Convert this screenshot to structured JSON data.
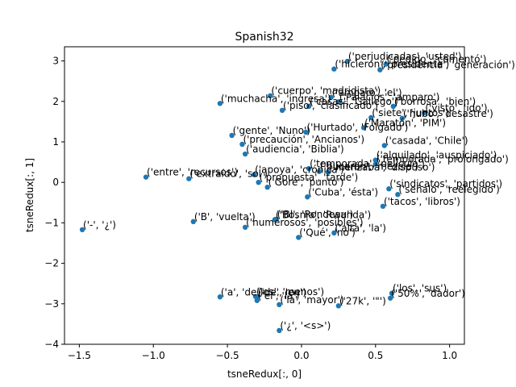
{
  "chart_data": {
    "type": "scatter",
    "title": "Spanish32",
    "xlabel": "tsneRedux[:, 0]",
    "ylabel": "tsneRedux[:, 1]",
    "xlim": [
      -1.6,
      1.1
    ],
    "ylim": [
      -4,
      3.35
    ],
    "xticks": [
      -1.5,
      -1.0,
      -0.5,
      0.0,
      0.5,
      1.0
    ],
    "xtick_labels": [
      "−1.5",
      "−1.0",
      "−0.5",
      "0.0",
      "0.5",
      "1.0"
    ],
    "yticks": [
      -4,
      -3,
      -2,
      -1,
      0,
      1,
      2,
      3
    ],
    "ytick_labels": [
      "−4",
      "−3",
      "−2",
      "−1",
      "0",
      "1",
      "2",
      "3"
    ],
    "grid": false,
    "marker_color": "#1f77b4",
    "points": [
      {
        "x": 0.31,
        "y": 2.99,
        "label": "('perjudicadas', 'usted')"
      },
      {
        "x": 0.57,
        "y": 2.92,
        "label": "('pedido', 'comentó')"
      },
      {
        "x": 0.53,
        "y": 2.78,
        "label": "('presidencia', 'generación')"
      },
      {
        "x": 0.22,
        "y": 2.8,
        "label": "('hicieron', 'presidente')"
      },
      {
        "x": -0.21,
        "y": 2.14,
        "label": "('cuerpo', 'madridista')"
      },
      {
        "x": -0.55,
        "y": 1.95,
        "label": "('muchacha', 'ingresa')"
      },
      {
        "x": 0.2,
        "y": 2.1,
        "label": "('amparo', 'el')"
      },
      {
        "x": 0.25,
        "y": 1.99,
        "label": "('Palacios', 'amparo')"
      },
      {
        "x": 0.05,
        "y": 1.88,
        "label": "('casas', 'Gallego')"
      },
      {
        "x": -0.13,
        "y": 1.78,
        "label": "('piso', 'clasificado')"
      },
      {
        "x": 0.62,
        "y": 1.88,
        "label": "('borrosa', 'bien')"
      },
      {
        "x": 0.83,
        "y": 1.72,
        "label": "('visto', 'ido')"
      },
      {
        "x": 0.47,
        "y": 1.6,
        "label": "('siete', 'juntos')"
      },
      {
        "x": 0.68,
        "y": 1.58,
        "label": "('hubo', 'desastre')"
      },
      {
        "x": 0.42,
        "y": 1.35,
        "label": "('Maratón', 'PIM')"
      },
      {
        "x": -0.47,
        "y": 1.16,
        "label": "('gente', 'Nuno')"
      },
      {
        "x": 0.03,
        "y": 1.24,
        "label": "('Hurtado', 'Folgado')"
      },
      {
        "x": -0.4,
        "y": 0.94,
        "label": "('precaución', 'Ancianos')"
      },
      {
        "x": 0.56,
        "y": 0.91,
        "label": "('casada', 'Chile')"
      },
      {
        "x": -0.38,
        "y": 0.7,
        "label": "('audiencia', 'Biblia')"
      },
      {
        "x": 0.5,
        "y": 0.55,
        "label": "('alquilado', 'auspiciado')"
      },
      {
        "x": 0.05,
        "y": 0.34,
        "label": "('temporada', 'película')"
      },
      {
        "x": 0.5,
        "y": 0.45,
        "label": "('temporada', 'prolongado')"
      },
      {
        "x": -1.05,
        "y": 0.13,
        "label": "('entre', 'recursos')"
      },
      {
        "x": -0.76,
        "y": 0.09,
        "label": "('extraído', 'sol')"
      },
      {
        "x": -0.32,
        "y": 0.19,
        "label": "('apoya', 'crónica')"
      },
      {
        "x": 0.12,
        "y": 0.27,
        "label": "('bucarán', 'mezcla')"
      },
      {
        "x": 0.18,
        "y": 0.25,
        "label": "('menzaba', 'dispuso')"
      },
      {
        "x": -0.29,
        "y": 0.0,
        "label": "('propuesta', 'tarde')"
      },
      {
        "x": -0.23,
        "y": -0.12,
        "label": "('Gore', 'punto')"
      },
      {
        "x": 0.59,
        "y": -0.16,
        "label": "('sindicatos', 'partidos')"
      },
      {
        "x": 0.65,
        "y": -0.3,
        "label": "('señaló', 'reelegido')"
      },
      {
        "x": 0.04,
        "y": -0.36,
        "label": "('Cuba', 'ésta')"
      },
      {
        "x": 0.55,
        "y": -0.59,
        "label": "('tacos', 'libros')"
      },
      {
        "x": -1.48,
        "y": -1.17,
        "label": "('-', '¿')"
      },
      {
        "x": -0.73,
        "y": -0.97,
        "label": "('B', 'vuelta')"
      },
      {
        "x": -0.18,
        "y": -0.92,
        "label": "('Bosnia', 'Rwanda')"
      },
      {
        "x": -0.17,
        "y": -0.91,
        "label": "('Bl', 'Rondeau')"
      },
      {
        "x": -0.38,
        "y": -1.11,
        "label": "('numerosos', 'posibles')"
      },
      {
        "x": 0.22,
        "y": -1.25,
        "label": "('alta', 'la')"
      },
      {
        "x": -0.02,
        "y": -1.36,
        "label": "('Qué', 'no')"
      },
      {
        "x": -0.55,
        "y": -2.83,
        "label": "('a', 'de')"
      },
      {
        "x": -0.31,
        "y": -2.82,
        "label": "('es', 'menos')"
      },
      {
        "x": -0.3,
        "y": -2.92,
        "label": "('el', 'la')"
      },
      {
        "x": -0.3,
        "y": -2.83,
        "label": "('de', 'en')"
      },
      {
        "x": -0.15,
        "y": -3.02,
        "label": "('la', 'mayor')"
      },
      {
        "x": 0.25,
        "y": -3.05,
        "label": "('27k', '\"')"
      },
      {
        "x": 0.61,
        "y": -2.74,
        "label": "('los', 'sus')"
      },
      {
        "x": 0.6,
        "y": -2.86,
        "label": "('50%', 'dador')"
      },
      {
        "x": -0.15,
        "y": -3.66,
        "label": "('¿', '<s>')"
      }
    ]
  }
}
